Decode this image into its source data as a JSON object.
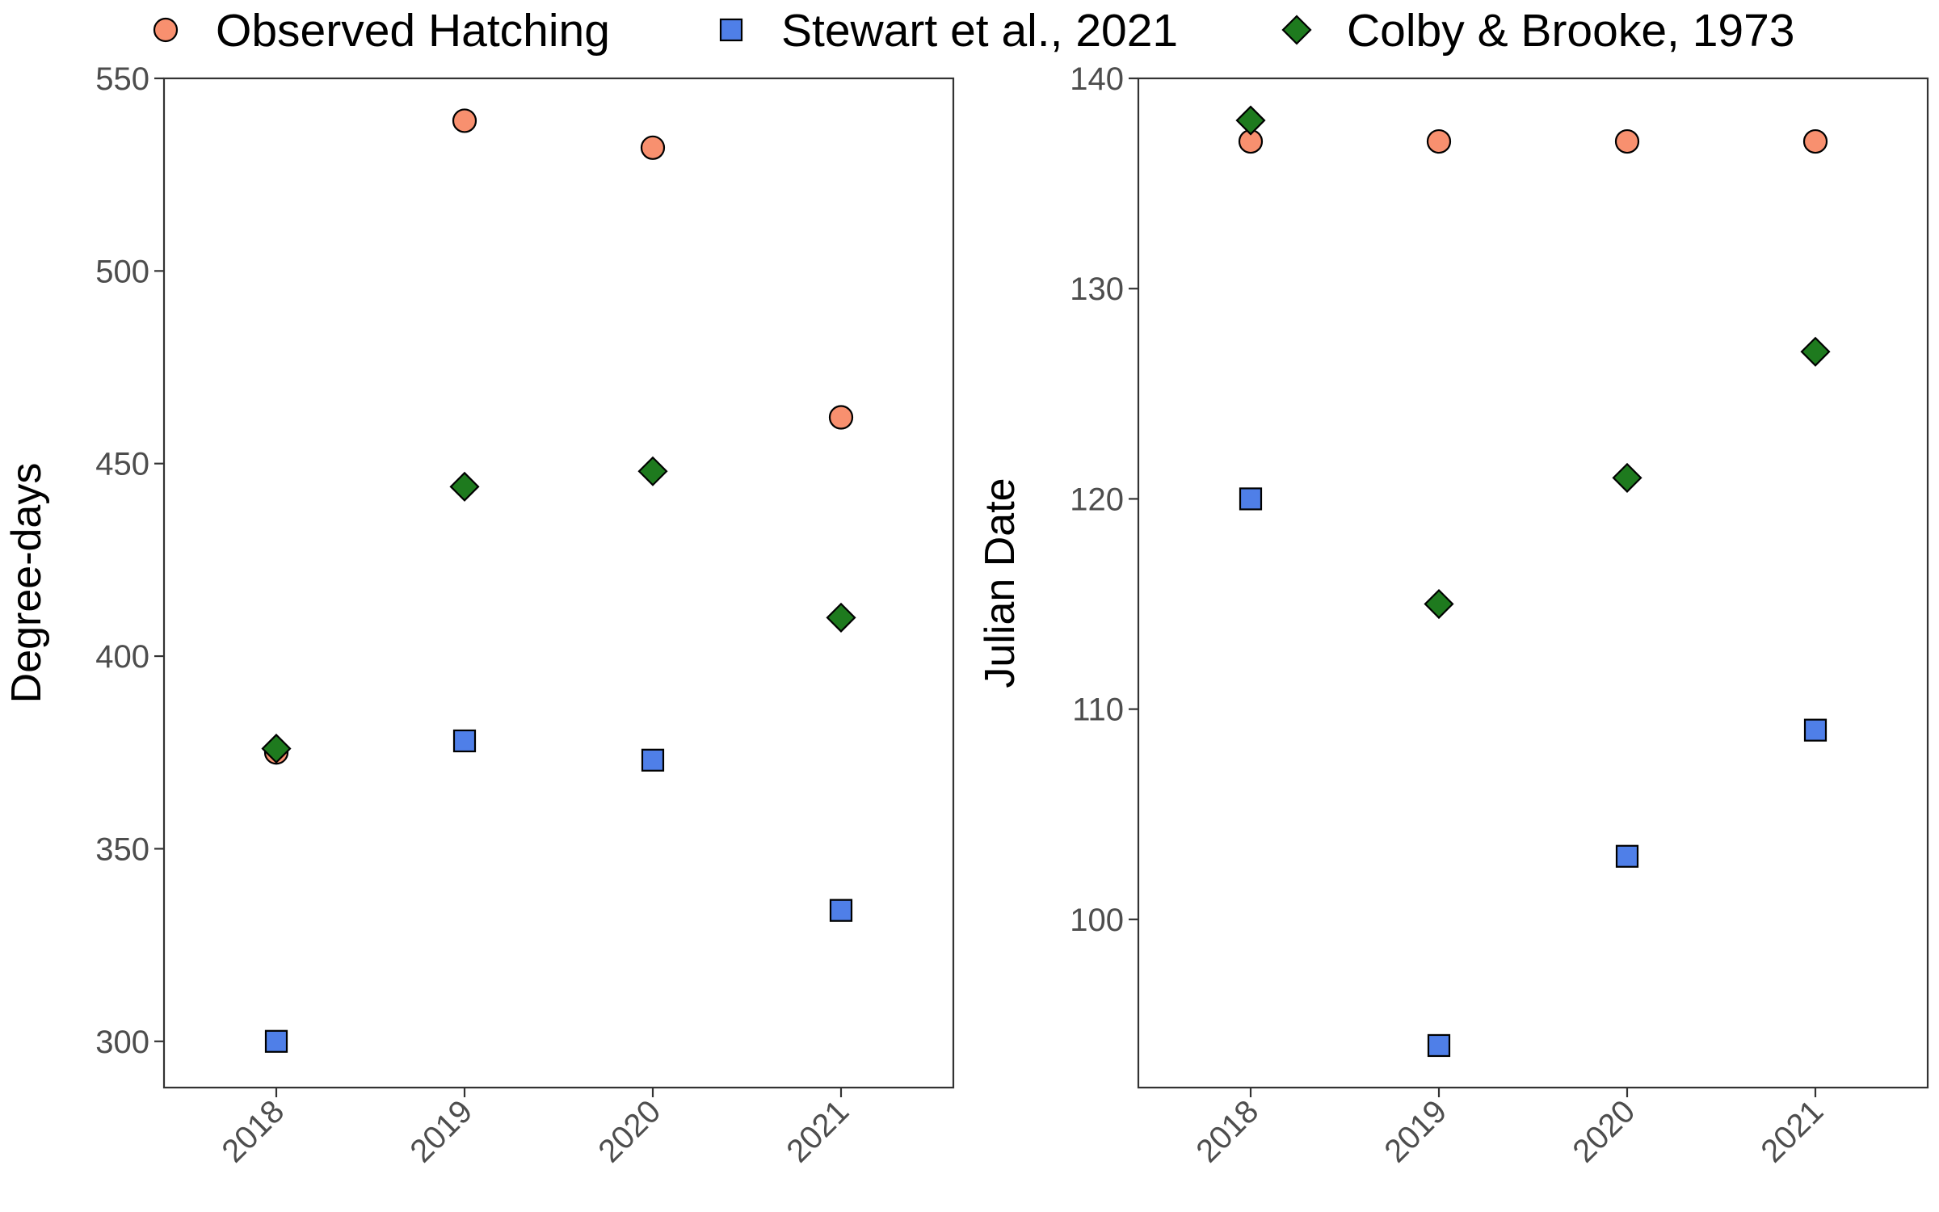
{
  "colors": {
    "observed": "#F8906F",
    "stewart": "#4F7FE8",
    "colby": "#1E7A1E"
  },
  "legend": [
    {
      "key": "observed",
      "label": "Observed Hatching",
      "shape": "circle"
    },
    {
      "key": "stewart",
      "label": "Stewart et al., 2021",
      "shape": "square"
    },
    {
      "key": "colby",
      "label": "Colby & Brooke, 1973",
      "shape": "diamond"
    }
  ],
  "chart_data": [
    {
      "type": "scatter",
      "title": "",
      "xlabel": "",
      "ylabel": "Degree-days",
      "categories": [
        "2018",
        "2019",
        "2020",
        "2021"
      ],
      "ylim": [
        288,
        550
      ],
      "yticks": [
        300,
        350,
        400,
        450,
        500,
        550
      ],
      "grid": false,
      "legend_position": "top",
      "series": [
        {
          "name": "Observed Hatching",
          "key": "observed",
          "values": [
            375,
            539,
            532,
            462
          ]
        },
        {
          "name": "Stewart et al., 2021",
          "key": "stewart",
          "values": [
            300,
            378,
            373,
            334
          ]
        },
        {
          "name": "Colby & Brooke, 1973",
          "key": "colby",
          "values": [
            376,
            444,
            448,
            410
          ]
        }
      ]
    },
    {
      "type": "scatter",
      "title": "",
      "xlabel": "",
      "ylabel": "Julian Date",
      "categories": [
        "2018",
        "2019",
        "2020",
        "2021"
      ],
      "ylim": [
        92,
        140
      ],
      "yticks": [
        100,
        110,
        120,
        130,
        140
      ],
      "grid": false,
      "legend_position": "top",
      "series": [
        {
          "name": "Observed Hatching",
          "key": "observed",
          "values": [
            137,
            137,
            137,
            137
          ]
        },
        {
          "name": "Stewart et al., 2021",
          "key": "stewart",
          "values": [
            120,
            94,
            103,
            109
          ]
        },
        {
          "name": "Colby & Brooke, 1973",
          "key": "colby",
          "values": [
            138,
            115,
            121,
            127
          ]
        }
      ]
    }
  ]
}
